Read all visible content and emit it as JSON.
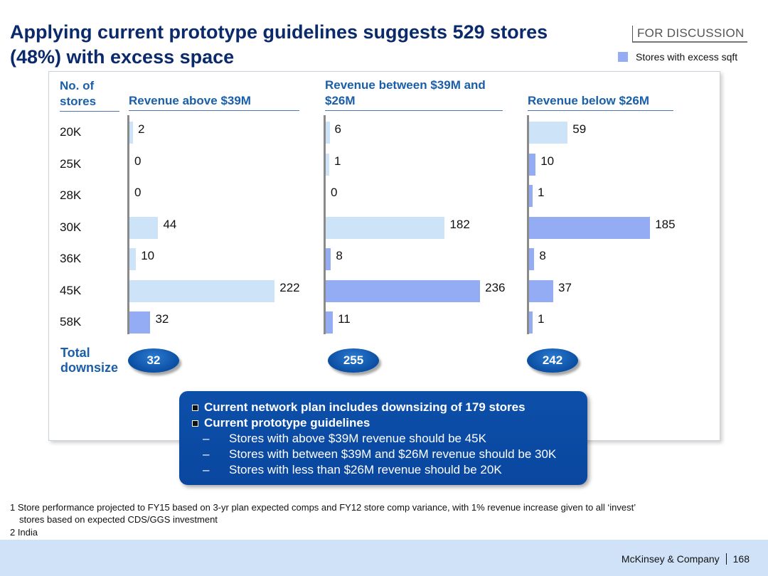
{
  "header": {
    "title_line1": "Applying current prototype guidelines suggests 529 stores",
    "title_line2": "(48%) with excess space",
    "discussion_label": "FOR DISCUSSION",
    "legend_label": "Stores with excess sqft",
    "colors": {
      "excess": "#93acf3",
      "normal": "#cde3f7",
      "accent": "#1a5fa8"
    }
  },
  "chart_data": {
    "type": "bar",
    "orientation": "horizontal",
    "row_header": "No. of stores",
    "categories": [
      "20K",
      "25K",
      "28K",
      "30K",
      "36K",
      "45K",
      "58K"
    ],
    "series": [
      {
        "name": "Revenue above $39M",
        "values": [
          2,
          0,
          0,
          44,
          10,
          222,
          32
        ],
        "excess_flags": [
          false,
          false,
          false,
          false,
          false,
          false,
          true
        ],
        "total_downsize": "32"
      },
      {
        "name": "Revenue between $39M and $26M",
        "values": [
          6,
          1,
          0,
          182,
          8,
          236,
          11
        ],
        "excess_flags": [
          false,
          false,
          false,
          false,
          true,
          true,
          true
        ],
        "total_downsize": "255"
      },
      {
        "name": "Revenue below $26M",
        "values": [
          59,
          10,
          1,
          185,
          8,
          37,
          1
        ],
        "excess_flags": [
          false,
          true,
          true,
          true,
          true,
          true,
          true
        ],
        "total_downsize": "242"
      }
    ],
    "total_label": "Total downsize"
  },
  "callout": {
    "bullets": [
      "Current network plan includes downsizing of 179 stores",
      "Current prototype guidelines"
    ],
    "dash": "–",
    "sub_bullets": [
      "Stores with above $39M revenue should be 45K",
      "Stores with between $39M and $26M revenue should be 30K",
      "Stores with less than $26M revenue should be 20K"
    ]
  },
  "footnotes": {
    "note1_line1": "1 Store performance projected to FY15 based on 3-yr plan expected comps and FY12 store comp variance, with 1% revenue increase given to all ‘invest’",
    "note1_line2": "stores based on expected CDS/GGS investment",
    "note2": "2 India"
  },
  "footer": {
    "company": "McKinsey & Company",
    "page": "168"
  }
}
